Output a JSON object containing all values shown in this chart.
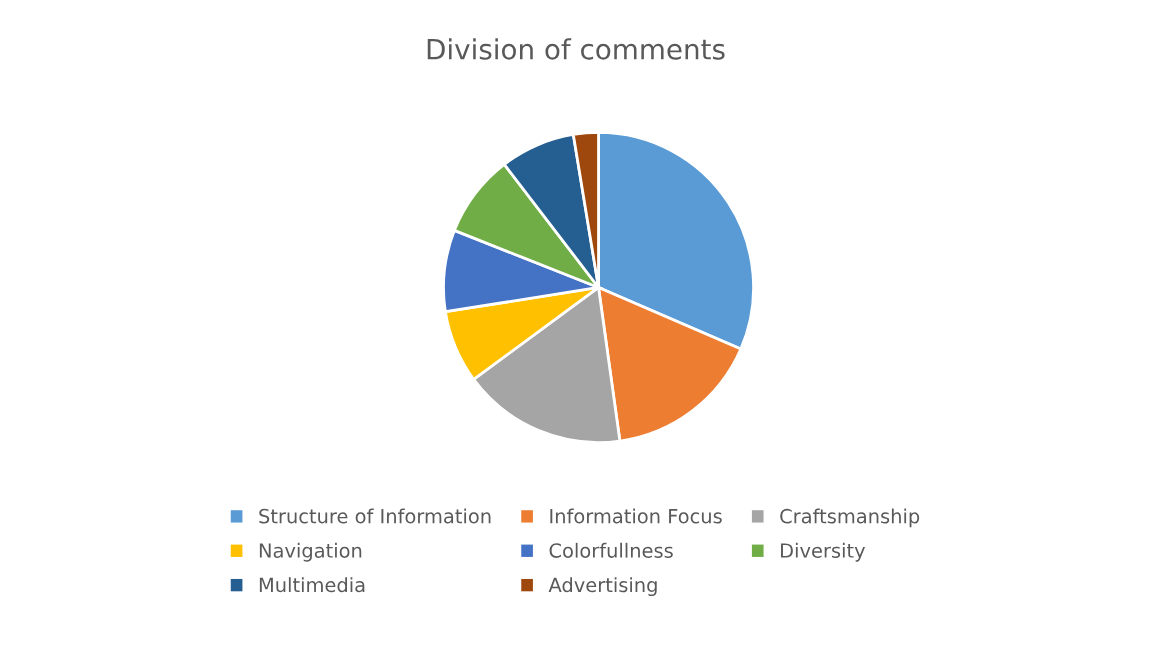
{
  "chart_data": {
    "type": "pie",
    "title": "Division of comments",
    "categories": [
      "Structure of Information",
      "Information Focus",
      "Craftsmanship",
      "Navigation",
      "Colorfullness",
      "Diversity",
      "Multimedia",
      "Advertising"
    ],
    "values": [
      31.5,
      16.3,
      17.1,
      7.6,
      8.5,
      8.6,
      7.8,
      2.6
    ],
    "colors": [
      "#5b9bd5",
      "#ed7d31",
      "#a5a5a5",
      "#ffc000",
      "#4472c4",
      "#70ad47",
      "#255e91",
      "#9e480e"
    ],
    "legend": "bottom"
  }
}
